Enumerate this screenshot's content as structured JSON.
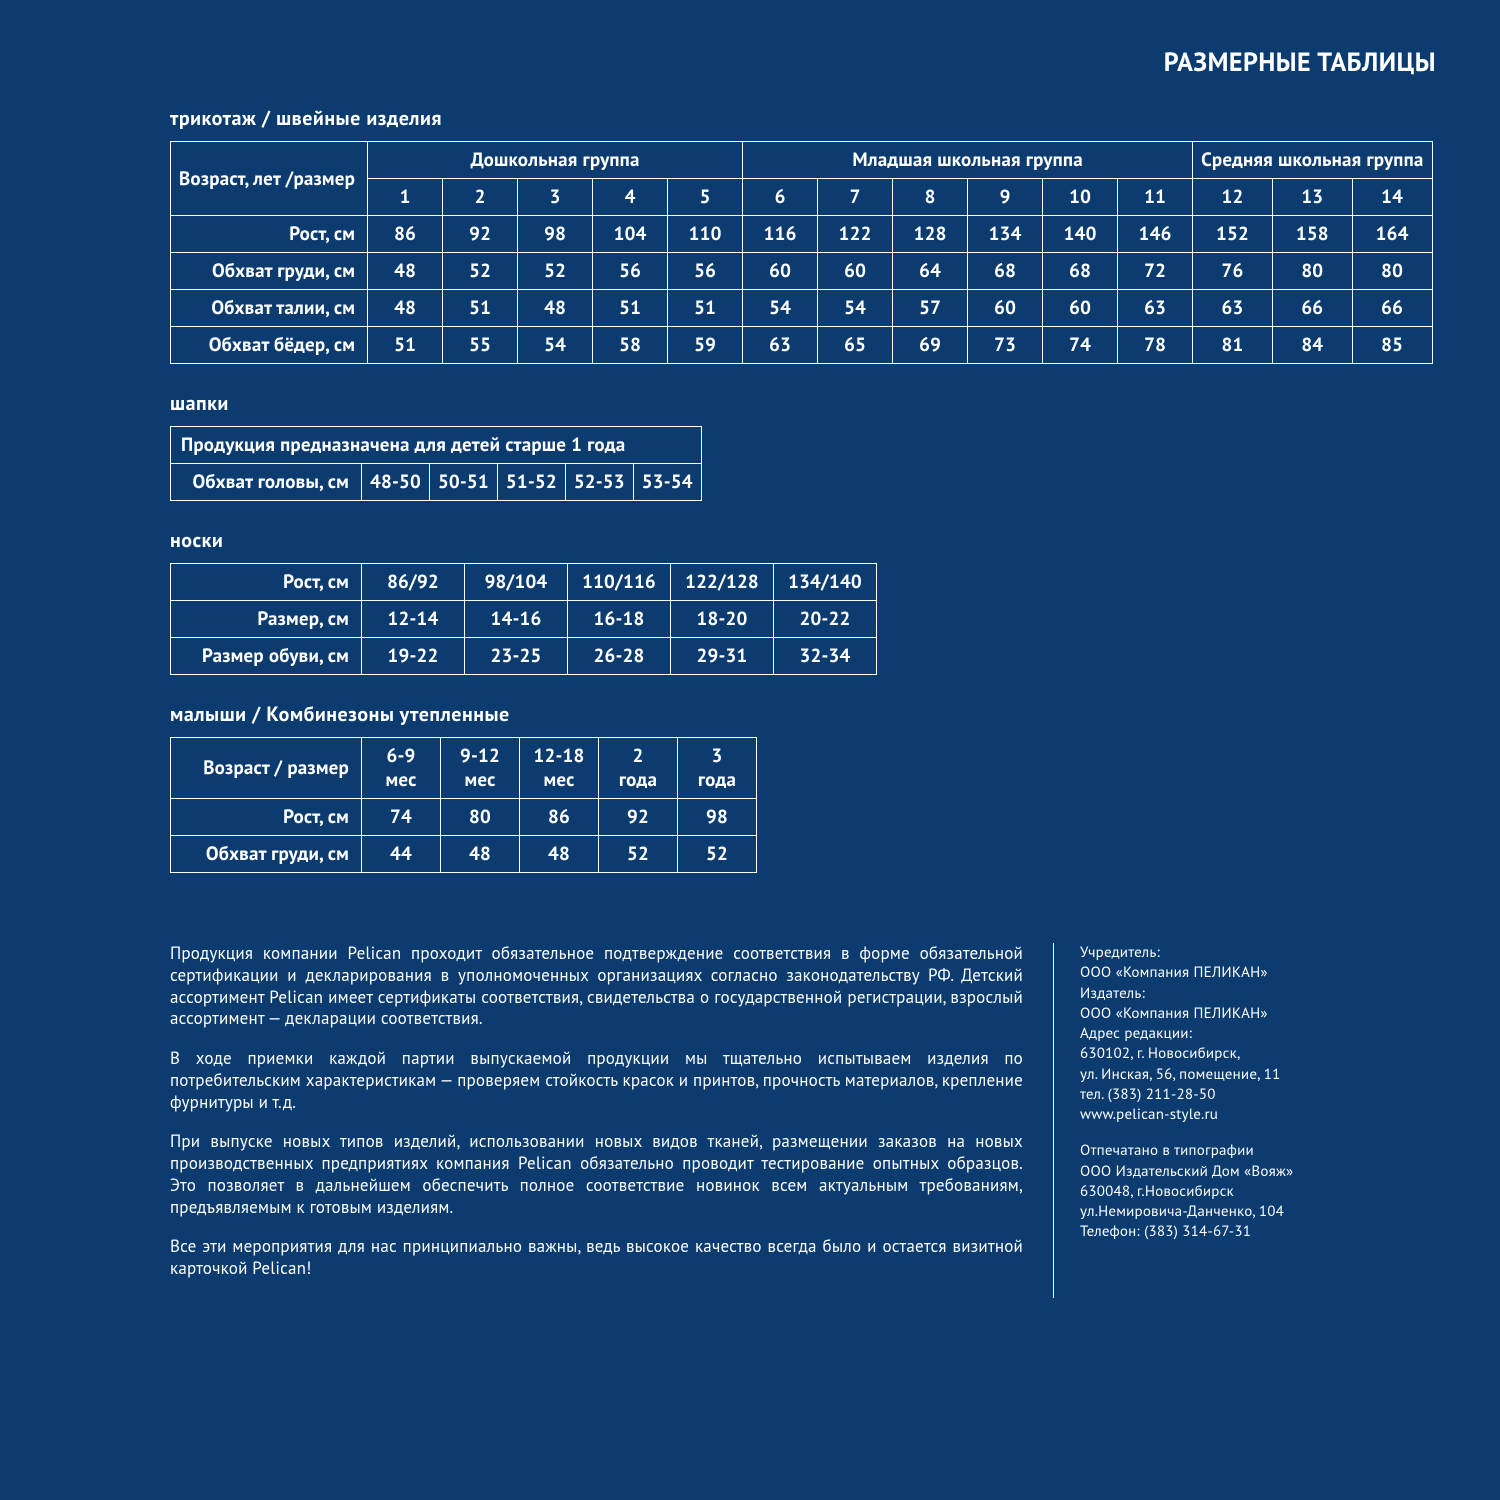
{
  "colors": {
    "bg": "#0b3b6f",
    "border": "#ffffff",
    "text": "#ffffff"
  },
  "page_title": "РАЗМЕРНЫЕ ТАБЛИЦЫ",
  "section1": {
    "title": "трикотаж / швейные изделия",
    "corner": "Возраст, лет /размер",
    "groups": [
      {
        "label": "Дошкольная группа",
        "span": 5
      },
      {
        "label": "Младшая школьная группа",
        "span": 6
      },
      {
        "label": "Средняя школьная группа",
        "span": 3
      }
    ],
    "sizes": [
      "1",
      "2",
      "3",
      "4",
      "5",
      "6",
      "7",
      "8",
      "9",
      "10",
      "11",
      "12",
      "13",
      "14"
    ],
    "rows": [
      {
        "label": "Рост, см",
        "v": [
          "86",
          "92",
          "98",
          "104",
          "110",
          "116",
          "122",
          "128",
          "134",
          "140",
          "146",
          "152",
          "158",
          "164"
        ]
      },
      {
        "label": "Обхват груди, см",
        "v": [
          "48",
          "52",
          "52",
          "56",
          "56",
          "60",
          "60",
          "64",
          "68",
          "68",
          "72",
          "76",
          "80",
          "80"
        ]
      },
      {
        "label": "Обхват талии, см",
        "v": [
          "48",
          "51",
          "48",
          "51",
          "51",
          "54",
          "54",
          "57",
          "60",
          "60",
          "63",
          "63",
          "66",
          "66"
        ]
      },
      {
        "label": "Обхват бёдер, см",
        "v": [
          "51",
          "55",
          "54",
          "58",
          "59",
          "63",
          "65",
          "69",
          "73",
          "74",
          "78",
          "81",
          "84",
          "85"
        ]
      }
    ]
  },
  "section2": {
    "title": "шапки",
    "note": "Продукция предназначена для детей старше 1 года",
    "row": {
      "label": "Обхват головы, см",
      "v": [
        "48-50",
        "50-51",
        "51-52",
        "52-53",
        "53-54"
      ]
    }
  },
  "section3": {
    "title": "носки",
    "rows": [
      {
        "label": "Рост, см",
        "v": [
          "86/92",
          "98/104",
          "110/116",
          "122/128",
          "134/140"
        ]
      },
      {
        "label": "Размер, см",
        "v": [
          "12-14",
          "14-16",
          "16-18",
          "18-20",
          "20-22"
        ]
      },
      {
        "label": "Размер обуви, см",
        "v": [
          "19-22",
          "23-25",
          "26-28",
          "29-31",
          "32-34"
        ]
      }
    ]
  },
  "section4": {
    "title": "малыши / Комбинезоны утепленные",
    "corner": "Возраст / размер",
    "sizes": [
      "6-9 мес",
      "9-12 мес",
      "12-18 мес",
      "2 года",
      "3 года"
    ],
    "rows": [
      {
        "label": "Рост, см",
        "v": [
          "74",
          "80",
          "86",
          "92",
          "98"
        ]
      },
      {
        "label": "Обхват груди, см",
        "v": [
          "44",
          "48",
          "48",
          "52",
          "52"
        ]
      }
    ]
  },
  "footer": {
    "paragraphs": [
      "Продукция компании Pelican проходит обязательное подтверждение соответствия в форме обязательной сертификации и декларирования в уполномоченных организациях согласно законодательству РФ. Детский ассортимент Pelican имеет сертификаты соответствия, свидетельства о государственной регистрации, взрослый ассортимент — декларации соответствия.",
      "В ходе приемки каждой партии выпускаемой продукции мы тщательно испытываем изделия по потребительским характеристикам — проверяем стойкость красок и принтов, прочность материалов, крепление фурнитуры и т.д.",
      "При выпуске новых типов изделий, использовании новых видов тканей, размещении заказов на новых производственных предприятиях компания Pelican обязательно проводит тестирование опытных образцов. Это позволяет в дальнейшем обеспечить полное соответствие новинок всем актуальным требованиям, предъявляемым к готовым изделиям.",
      "Все эти мероприятия для нас принципиально важны, ведь высокое качество всегда было и остается визитной карточкой Pelican!"
    ],
    "imprint": {
      "founder_label": "Учредитель:",
      "founder": "ООО «Компания ПЕЛИКАН»",
      "publisher_label": "Издатель:",
      "publisher": "ООО «Компания ПЕЛИКАН»",
      "address_label": "Адрес редакции:",
      "address_line1": "630102, г. Новосибирск,",
      "address_line2": "ул. Инская, 56, помещение, 11",
      "tel": "тел. (383) 211-28-50",
      "site": "www.pelican-style.ru",
      "print_label": "Отпечатано в типографии",
      "print_line1": "ООО Издательский Дом «Вояж»",
      "print_line2": "630048, г.Новосибирск",
      "print_line3": "ул.Немировича-Данченко, 104",
      "print_tel": "Телефон: (383) 314-67-31"
    }
  }
}
